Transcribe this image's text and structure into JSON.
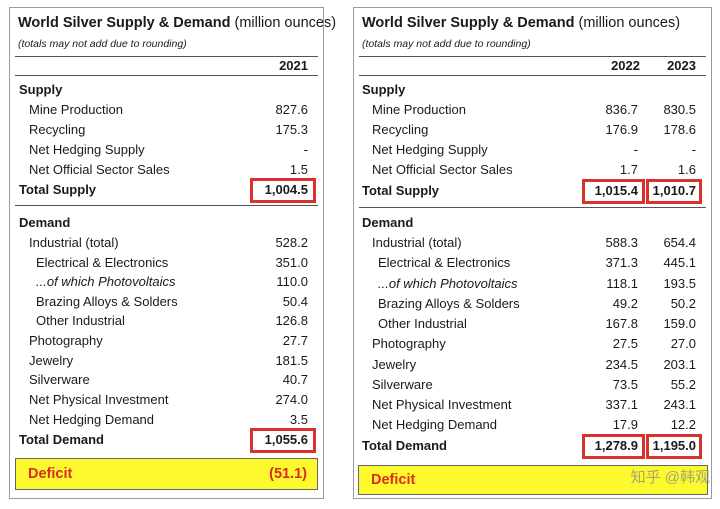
{
  "left": {
    "title": "World Silver Supply & Demand",
    "units": "(million ounces)",
    "note": "(totals may not add due to rounding)",
    "years": [
      "2021"
    ],
    "rows": [
      {
        "label": "Supply",
        "values": [
          ""
        ]
      },
      {
        "label": "Mine Production",
        "values": [
          "827.6"
        ]
      },
      {
        "label": "Recycling",
        "values": [
          "175.3"
        ]
      },
      {
        "label": "Net Hedging Supply",
        "values": [
          "-"
        ]
      },
      {
        "label": "Net Official Sector Sales",
        "values": [
          "1.5"
        ]
      },
      {
        "label": "Total Supply",
        "values": [
          "1,004.5"
        ]
      },
      {
        "label": "Demand",
        "values": [
          ""
        ]
      },
      {
        "label": "Industrial (total)",
        "values": [
          "528.2"
        ]
      },
      {
        "label": "Electrical & Electronics",
        "values": [
          "351.0"
        ]
      },
      {
        "label": "...of which Photovoltaics",
        "values": [
          "110.0"
        ]
      },
      {
        "label": "Brazing Alloys & Solders",
        "values": [
          "50.4"
        ]
      },
      {
        "label": "Other Industrial",
        "values": [
          "126.8"
        ]
      },
      {
        "label": "Photography",
        "values": [
          "27.7"
        ]
      },
      {
        "label": "Jewelry",
        "values": [
          "181.5"
        ]
      },
      {
        "label": "Silverware",
        "values": [
          "40.7"
        ]
      },
      {
        "label": "Net Physical Investment",
        "values": [
          "274.0"
        ]
      },
      {
        "label": "Net Hedging Demand",
        "values": [
          "3.5"
        ]
      },
      {
        "label": "Total Demand",
        "values": [
          "1,055.6"
        ]
      }
    ],
    "deficit": {
      "label": "Deficit",
      "value": "(51.1)"
    }
  },
  "right": {
    "title": "World Silver Supply & Demand",
    "units": "(million ounces)",
    "note": "(totals may not add due to rounding)",
    "years": [
      "2022",
      "2023"
    ],
    "rows": [
      {
        "label": "Supply",
        "values": [
          "",
          ""
        ]
      },
      {
        "label": "Mine Production",
        "values": [
          "836.7",
          "830.5"
        ]
      },
      {
        "label": "Recycling",
        "values": [
          "176.9",
          "178.6"
        ]
      },
      {
        "label": "Net Hedging Supply",
        "values": [
          "-",
          "-"
        ]
      },
      {
        "label": "Net Official Sector Sales",
        "values": [
          "1.7",
          "1.6"
        ]
      },
      {
        "label": "Total Supply",
        "values": [
          "1,015.4",
          "1,010.7"
        ]
      },
      {
        "label": "Demand",
        "values": [
          "",
          ""
        ]
      },
      {
        "label": "Industrial (total)",
        "values": [
          "588.3",
          "654.4"
        ]
      },
      {
        "label": "Electrical & Electronics",
        "values": [
          "371.3",
          "445.1"
        ]
      },
      {
        "label": "...of which Photovoltaics",
        "values": [
          "118.1",
          "193.5"
        ]
      },
      {
        "label": "Brazing Alloys & Solders",
        "values": [
          "49.2",
          "50.2"
        ]
      },
      {
        "label": "Other Industrial",
        "values": [
          "167.8",
          "159.0"
        ]
      },
      {
        "label": "Photography",
        "values": [
          "27.5",
          "27.0"
        ]
      },
      {
        "label": "Jewelry",
        "values": [
          "234.5",
          "203.1"
        ]
      },
      {
        "label": "Silverware",
        "values": [
          "73.5",
          "55.2"
        ]
      },
      {
        "label": "Net Physical Investment",
        "values": [
          "337.1",
          "243.1"
        ]
      },
      {
        "label": "Net Hedging Demand",
        "values": [
          "17.9",
          "12.2"
        ]
      },
      {
        "label": "Total Demand",
        "values": [
          "1,278.9",
          "1,195.0"
        ]
      }
    ],
    "deficit": {
      "label": "Deficit",
      "value": ""
    }
  },
  "watermark": "知乎 @韩观",
  "colors": {
    "highlight_box": "#d9312b",
    "deficit_fill": "#fdf92f",
    "deficit_text": "#e0291f"
  }
}
